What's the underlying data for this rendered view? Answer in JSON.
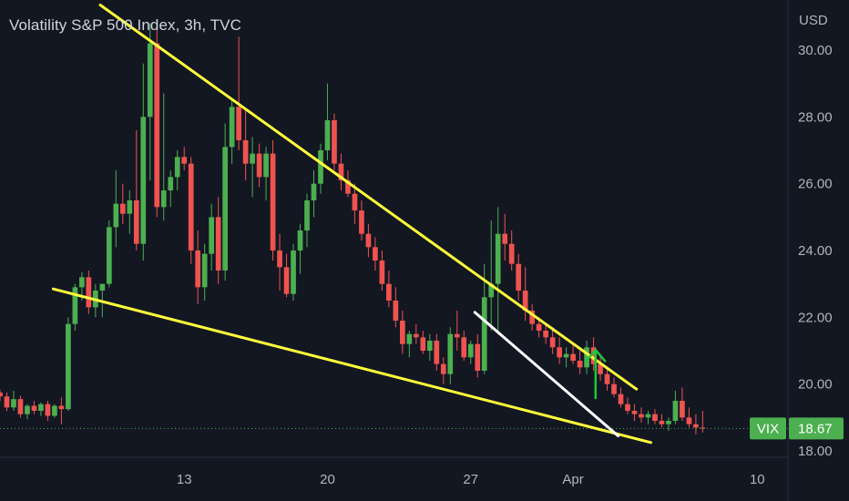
{
  "chart_title": "Volatility S&P 500 Index, 3h, TVC",
  "colors": {
    "background": "#131722",
    "up": "#26a69a",
    "up_bright": "#4caf50",
    "down": "#ef5350",
    "trendline": "#ffff3b",
    "white_line": "#ffffff",
    "arrow": "#22c43a",
    "badge": "#4caf50"
  },
  "chart_data": {
    "type": "candlestick",
    "title": "Volatility S&P 500 Index, 3h, TVC",
    "y_unit": "USD",
    "ylim": [
      16.5,
      31.5
    ],
    "y_ticks": [
      18.0,
      20.0,
      22.0,
      24.0,
      26.0,
      28.0,
      30.0
    ],
    "y_tick_labels": [
      "18.00",
      "20.00",
      "22.00",
      "24.00",
      "26.00",
      "28.00",
      "30.00"
    ],
    "x_tick_labels": [
      "13",
      "20",
      "27",
      "Apr",
      "10"
    ],
    "x_ticks_day": [
      13,
      20,
      27,
      32,
      41
    ],
    "xlim_day": [
      4.0,
      42.5
    ],
    "bars_per_day": 3,
    "first_bar_day": 4.0,
    "candles": [
      [
        19.75,
        19.83,
        19.49,
        19.63
      ],
      [
        19.63,
        19.75,
        19.19,
        19.3
      ],
      [
        19.3,
        19.8,
        19.2,
        19.55
      ],
      [
        19.55,
        19.65,
        19.0,
        19.1
      ],
      [
        19.1,
        19.4,
        18.95,
        19.35
      ],
      [
        19.35,
        19.5,
        19.1,
        19.2
      ],
      [
        19.2,
        19.45,
        19.05,
        19.4
      ],
      [
        19.4,
        19.5,
        18.9,
        19.05
      ],
      [
        19.05,
        19.4,
        19.0,
        19.35
      ],
      [
        19.35,
        19.6,
        18.8,
        19.25
      ],
      [
        19.25,
        22.0,
        19.2,
        21.8
      ],
      [
        21.8,
        23.0,
        21.6,
        22.9
      ],
      [
        22.9,
        23.35,
        22.5,
        23.2
      ],
      [
        23.2,
        23.4,
        22.1,
        22.3
      ],
      [
        22.3,
        23.0,
        22.0,
        22.8
      ],
      [
        22.8,
        23.0,
        22.0,
        23.0
      ],
      [
        23.0,
        24.9,
        22.9,
        24.7
      ],
      [
        24.7,
        26.4,
        24.1,
        25.4
      ],
      [
        25.4,
        26.0,
        24.8,
        25.1
      ],
      [
        25.1,
        25.8,
        24.5,
        25.5
      ],
      [
        25.5,
        27.6,
        24.0,
        24.2
      ],
      [
        24.2,
        29.6,
        23.7,
        28.0
      ],
      [
        28.0,
        30.8,
        26.1,
        30.2
      ],
      [
        30.2,
        30.9,
        25.0,
        25.3
      ],
      [
        25.3,
        28.7,
        24.9,
        25.8
      ],
      [
        25.8,
        26.4,
        25.3,
        26.2
      ],
      [
        26.2,
        27.0,
        25.8,
        26.8
      ],
      [
        26.8,
        27.1,
        26.4,
        26.6
      ],
      [
        26.6,
        26.8,
        23.6,
        24.0
      ],
      [
        24.0,
        24.6,
        22.4,
        22.9
      ],
      [
        22.9,
        24.2,
        22.5,
        23.9
      ],
      [
        23.9,
        25.4,
        23.4,
        25.0
      ],
      [
        25.0,
        25.6,
        23.0,
        23.4
      ],
      [
        23.4,
        27.8,
        23.1,
        27.1
      ],
      [
        27.1,
        28.5,
        26.6,
        28.3
      ],
      [
        28.3,
        30.4,
        27.0,
        27.3
      ],
      [
        27.3,
        28.2,
        26.1,
        26.6
      ],
      [
        26.6,
        27.4,
        25.6,
        26.9
      ],
      [
        26.9,
        27.2,
        25.9,
        26.2
      ],
      [
        26.2,
        27.1,
        25.5,
        26.9
      ],
      [
        26.9,
        27.3,
        23.7,
        24.0
      ],
      [
        24.0,
        24.5,
        22.8,
        23.5
      ],
      [
        23.5,
        23.9,
        22.6,
        22.7
      ],
      [
        22.7,
        24.2,
        22.5,
        24.0
      ],
      [
        24.0,
        24.8,
        23.3,
        24.6
      ],
      [
        24.6,
        25.7,
        24.1,
        25.5
      ],
      [
        25.5,
        26.4,
        25.0,
        26.0
      ],
      [
        26.0,
        27.2,
        25.7,
        27.0
      ],
      [
        27.0,
        29.0,
        26.7,
        27.9
      ],
      [
        27.9,
        28.1,
        26.4,
        26.6
      ],
      [
        26.6,
        26.9,
        25.8,
        26.1
      ],
      [
        26.1,
        26.4,
        25.6,
        25.7
      ],
      [
        25.7,
        26.0,
        24.8,
        25.2
      ],
      [
        25.2,
        25.5,
        24.3,
        24.5
      ],
      [
        24.5,
        24.8,
        23.8,
        24.1
      ],
      [
        24.1,
        24.4,
        23.4,
        23.7
      ],
      [
        23.7,
        24.0,
        22.8,
        23.0
      ],
      [
        23.0,
        23.4,
        22.3,
        22.5
      ],
      [
        22.5,
        22.9,
        21.7,
        21.9
      ],
      [
        21.9,
        22.2,
        20.9,
        21.2
      ],
      [
        21.2,
        21.6,
        20.8,
        21.5
      ],
      [
        21.5,
        21.8,
        21.2,
        21.4
      ],
      [
        21.4,
        21.6,
        20.9,
        21.0
      ],
      [
        21.0,
        21.5,
        20.7,
        21.3
      ],
      [
        21.3,
        21.5,
        20.4,
        20.6
      ],
      [
        20.6,
        20.8,
        20.0,
        20.3
      ],
      [
        20.3,
        21.7,
        20.0,
        21.5
      ],
      [
        21.5,
        22.2,
        21.0,
        21.4
      ],
      [
        21.4,
        21.6,
        20.7,
        20.8
      ],
      [
        20.8,
        21.3,
        20.6,
        21.2
      ],
      [
        21.2,
        21.5,
        20.2,
        20.4
      ],
      [
        20.4,
        23.6,
        20.3,
        22.6
      ],
      [
        22.6,
        24.9,
        21.6,
        23.0
      ],
      [
        23.0,
        25.3,
        21.5,
        24.5
      ],
      [
        24.5,
        25.1,
        23.7,
        24.2
      ],
      [
        24.2,
        24.6,
        23.4,
        23.6
      ],
      [
        23.6,
        23.9,
        22.5,
        22.8
      ],
      [
        22.8,
        23.5,
        21.9,
        22.2
      ],
      [
        22.2,
        22.4,
        21.6,
        21.8
      ],
      [
        21.8,
        22.0,
        21.4,
        21.6
      ],
      [
        21.6,
        21.8,
        21.2,
        21.4
      ],
      [
        21.4,
        21.7,
        20.9,
        21.1
      ],
      [
        21.1,
        21.4,
        20.6,
        20.8
      ],
      [
        20.8,
        21.1,
        20.5,
        20.9
      ],
      [
        20.9,
        21.2,
        20.6,
        20.7
      ],
      [
        20.7,
        21.0,
        20.3,
        20.5
      ],
      [
        20.5,
        21.3,
        20.3,
        21.1
      ],
      [
        21.1,
        21.4,
        20.4,
        20.6
      ],
      [
        20.6,
        20.9,
        20.1,
        20.3
      ],
      [
        20.3,
        20.5,
        19.8,
        20.0
      ],
      [
        20.0,
        20.2,
        19.6,
        19.7
      ],
      [
        19.7,
        19.9,
        19.3,
        19.4
      ],
      [
        19.4,
        19.6,
        19.1,
        19.2
      ],
      [
        19.2,
        19.4,
        18.9,
        19.1
      ],
      [
        19.1,
        19.3,
        18.85,
        19.0
      ],
      [
        19.0,
        19.2,
        18.8,
        19.1
      ],
      [
        19.1,
        19.25,
        18.8,
        18.9
      ],
      [
        18.9,
        19.1,
        18.7,
        18.8
      ],
      [
        18.8,
        19.0,
        18.6,
        18.9
      ],
      [
        18.9,
        19.8,
        18.8,
        19.5
      ],
      [
        19.5,
        19.9,
        18.9,
        19.0
      ],
      [
        19.0,
        19.3,
        18.7,
        18.8
      ],
      [
        18.8,
        19.1,
        18.5,
        18.7
      ],
      [
        18.7,
        19.2,
        18.55,
        18.67
      ]
    ],
    "trendlines": [
      {
        "color": "yellow",
        "points": [
          [
            6.6,
            22.85
          ],
          [
            35.8,
            18.25
          ]
        ]
      },
      {
        "color": "yellow",
        "points": [
          [
            8.9,
            31.35
          ],
          [
            35.1,
            19.85
          ]
        ]
      },
      {
        "color": "white",
        "points": [
          [
            27.2,
            22.15
          ],
          [
            34.2,
            18.45
          ]
        ]
      }
    ],
    "arrow": {
      "day": 33.1,
      "from": 19.55,
      "to": 21.05
    },
    "last_value": {
      "label": "VIX",
      "value": "18.67"
    },
    "grid": false
  }
}
